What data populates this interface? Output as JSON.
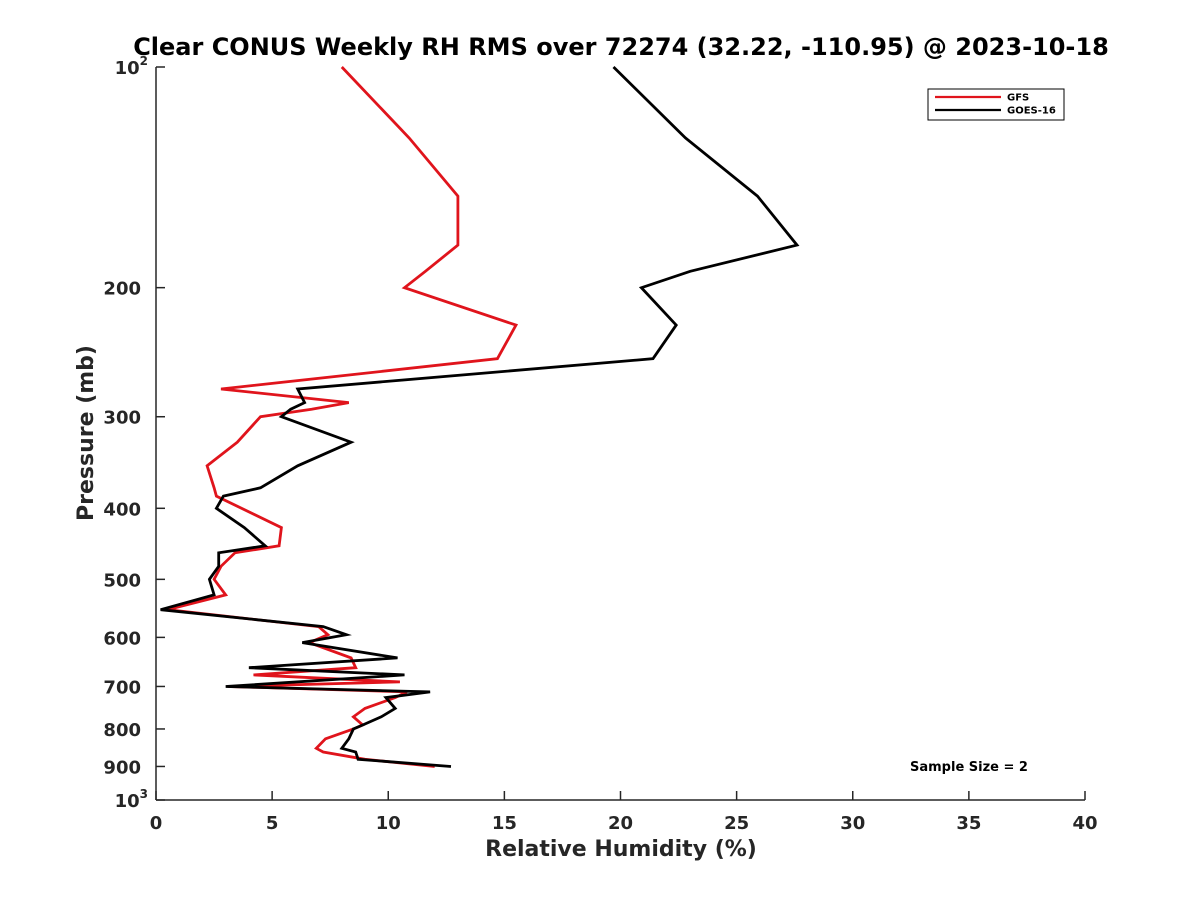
{
  "chart_data": {
    "type": "line",
    "title": "Clear CONUS Weekly RH RMS over 72274 (32.22, -110.95) @ 2023-10-18",
    "xlabel": "Relative Humidity (%)",
    "ylabel": "Pressure (mb)",
    "xlim": [
      0,
      40
    ],
    "ylim": [
      100,
      1000
    ],
    "y_scale": "log",
    "y_reversed": true,
    "grid": false,
    "legend_position": "top-right",
    "x_ticks": [
      "0",
      "5",
      "10",
      "15",
      "20",
      "25",
      "30",
      "35",
      "40"
    ],
    "y_ticks": [
      {
        "base": "10",
        "exp": "2",
        "value": 100
      },
      {
        "base": "200",
        "exp": "",
        "value": 200
      },
      {
        "base": "300",
        "exp": "",
        "value": 300
      },
      {
        "base": "400",
        "exp": "",
        "value": 400
      },
      {
        "base": "500",
        "exp": "",
        "value": 500
      },
      {
        "base": "600",
        "exp": "",
        "value": 600
      },
      {
        "base": "700",
        "exp": "",
        "value": 700
      },
      {
        "base": "800",
        "exp": "",
        "value": 800
      },
      {
        "base": "900",
        "exp": "",
        "value": 900
      },
      {
        "base": "10",
        "exp": "3",
        "value": 1000
      }
    ],
    "annotation": "Sample Size = 2",
    "series": [
      {
        "name": "GFS",
        "color": "#e0141c",
        "points": [
          [
            8.0,
            100
          ],
          [
            10.9,
            125
          ],
          [
            13.0,
            150
          ],
          [
            13.0,
            175
          ],
          [
            11.6,
            190
          ],
          [
            10.7,
            200
          ],
          [
            15.5,
            225
          ],
          [
            14.7,
            250
          ],
          [
            2.8,
            275
          ],
          [
            8.3,
            287
          ],
          [
            6.7,
            293
          ],
          [
            4.5,
            300
          ],
          [
            3.5,
            325
          ],
          [
            2.2,
            350
          ],
          [
            2.5,
            375
          ],
          [
            2.6,
            385
          ],
          [
            5.4,
            425
          ],
          [
            5.3,
            450
          ],
          [
            3.4,
            460
          ],
          [
            2.8,
            480
          ],
          [
            2.5,
            500
          ],
          [
            3.0,
            525
          ],
          [
            0.5,
            550
          ],
          [
            7.0,
            580
          ],
          [
            7.4,
            595
          ],
          [
            6.6,
            610
          ],
          [
            8.4,
            640
          ],
          [
            8.6,
            660
          ],
          [
            4.2,
            675
          ],
          [
            10.5,
            690
          ],
          [
            3.1,
            700
          ],
          [
            10.8,
            712
          ],
          [
            10.3,
            725
          ],
          [
            9.0,
            750
          ],
          [
            8.5,
            770
          ],
          [
            8.9,
            790
          ],
          [
            8.5,
            800
          ],
          [
            7.3,
            825
          ],
          [
            6.9,
            850
          ],
          [
            7.2,
            860
          ],
          [
            9.0,
            880
          ],
          [
            12.0,
            900
          ]
        ]
      },
      {
        "name": "GOES-16",
        "color": "#000000",
        "points": [
          [
            19.7,
            100
          ],
          [
            22.8,
            125
          ],
          [
            25.9,
            150
          ],
          [
            27.6,
            175
          ],
          [
            23.0,
            190
          ],
          [
            20.9,
            200
          ],
          [
            22.4,
            225
          ],
          [
            21.4,
            250
          ],
          [
            6.1,
            275
          ],
          [
            6.4,
            287
          ],
          [
            5.8,
            293
          ],
          [
            5.4,
            300
          ],
          [
            8.4,
            325
          ],
          [
            6.1,
            350
          ],
          [
            4.5,
            375
          ],
          [
            2.9,
            385
          ],
          [
            2.6,
            400
          ],
          [
            3.8,
            425
          ],
          [
            4.7,
            450
          ],
          [
            2.7,
            460
          ],
          [
            2.7,
            480
          ],
          [
            2.3,
            500
          ],
          [
            2.5,
            525
          ],
          [
            0.2,
            550
          ],
          [
            7.2,
            580
          ],
          [
            8.2,
            595
          ],
          [
            6.3,
            610
          ],
          [
            10.4,
            640
          ],
          [
            4.0,
            660
          ],
          [
            10.7,
            675
          ],
          [
            3.0,
            700
          ],
          [
            11.8,
            712
          ],
          [
            9.9,
            725
          ],
          [
            10.3,
            750
          ],
          [
            9.7,
            770
          ],
          [
            8.9,
            790
          ],
          [
            8.5,
            800
          ],
          [
            8.3,
            825
          ],
          [
            8.0,
            850
          ],
          [
            8.6,
            860
          ],
          [
            8.7,
            880
          ],
          [
            12.7,
            900
          ]
        ]
      }
    ]
  }
}
